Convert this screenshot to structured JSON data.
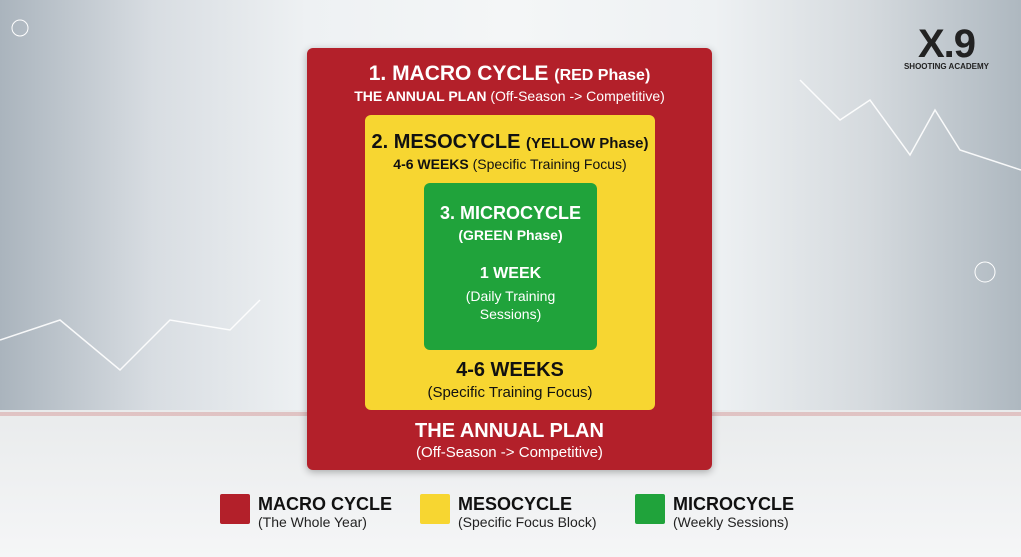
{
  "logo": {
    "mark": "X.9",
    "subtitle": "SHOOTING ACADEMY"
  },
  "macro": {
    "title": "1. MACRO CYCLE",
    "phase": "(RED Phase)",
    "sub_bold": "THE ANNUAL PLAN",
    "sub": "(Off-Season -> Competitive)",
    "bottom_title": "THE ANNUAL PLAN",
    "bottom_sub": "(Off-Season -> Competitive)",
    "color": "#b3202a"
  },
  "meso": {
    "title": "2. MESOCYCLE",
    "phase": "(YELLOW Phase)",
    "sub_bold": "4-6 WEEKS",
    "sub": "(Specific Training Focus)",
    "bottom_title": "4-6 WEEKS",
    "bottom_sub": "(Specific Training Focus)",
    "color": "#f7d631"
  },
  "micro": {
    "title": "3. MICROCYCLE",
    "phase": "(GREEN Phase)",
    "duration": "1 WEEK",
    "sub1": "(Daily Training",
    "sub2": "Sessions)",
    "color": "#20a33b"
  },
  "legend": [
    {
      "label": "MACRO CYCLE",
      "desc": "(The Whole Year)",
      "color": "#b3202a"
    },
    {
      "label": "MESOCYCLE",
      "desc": "(Specific Focus Block)",
      "color": "#f7d631"
    },
    {
      "label": "MICROCYCLE",
      "desc": "(Weekly Sessions)",
      "color": "#20a33b"
    }
  ]
}
